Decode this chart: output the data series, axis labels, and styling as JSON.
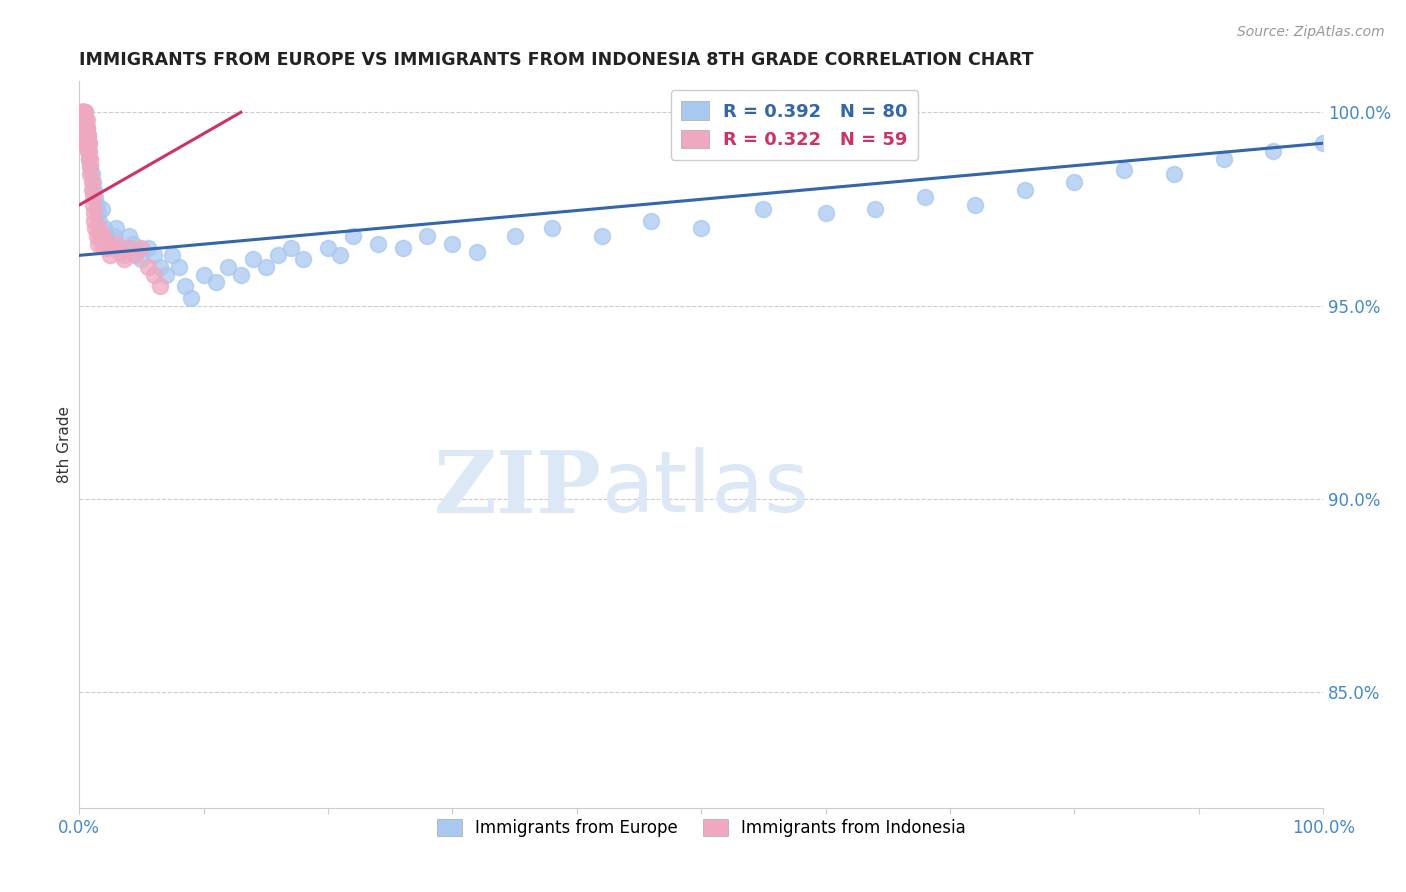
{
  "title": "IMMIGRANTS FROM EUROPE VS IMMIGRANTS FROM INDONESIA 8TH GRADE CORRELATION CHART",
  "source": "Source: ZipAtlas.com",
  "ylabel": "8th Grade",
  "xlim": [
    0.0,
    1.0
  ],
  "ylim": [
    0.82,
    1.008
  ],
  "yticks": [
    0.85,
    0.9,
    0.95,
    1.0
  ],
  "ytick_labels": [
    "85.0%",
    "90.0%",
    "95.0%",
    "100.0%"
  ],
  "xticks": [
    0.0,
    0.1,
    0.2,
    0.3,
    0.4,
    0.5,
    0.6,
    0.7,
    0.8,
    0.9,
    1.0
  ],
  "xtick_labels": [
    "0.0%",
    "",
    "",
    "",
    "",
    "",
    "",
    "",
    "",
    "",
    "100.0%"
  ],
  "legend1_label": "Immigrants from Europe",
  "legend2_label": "Immigrants from Indonesia",
  "R_europe": 0.392,
  "N_europe": 80,
  "R_indonesia": 0.322,
  "N_indonesia": 59,
  "europe_color": "#a8c8f0",
  "indonesia_color": "#f0a8c0",
  "europe_line_color": "#3366aa",
  "indonesia_line_color": "#cc3366",
  "watermark_zip": "ZIP",
  "watermark_atlas": "atlas",
  "watermark_color": "#dce8f5",
  "background_color": "#ffffff",
  "grid_color": "#cccccc",
  "axis_label_color": "#4488cc",
  "title_color": "#222222",
  "europe_x": [
    0.001,
    0.002,
    0.002,
    0.003,
    0.003,
    0.003,
    0.004,
    0.004,
    0.004,
    0.005,
    0.005,
    0.005,
    0.006,
    0.006,
    0.007,
    0.007,
    0.008,
    0.008,
    0.009,
    0.01,
    0.011,
    0.012,
    0.013,
    0.014,
    0.015,
    0.016,
    0.018,
    0.02,
    0.022,
    0.025,
    0.028,
    0.03,
    0.033,
    0.036,
    0.04,
    0.043,
    0.046,
    0.05,
    0.055,
    0.06,
    0.065,
    0.07,
    0.075,
    0.08,
    0.085,
    0.09,
    0.1,
    0.11,
    0.12,
    0.13,
    0.14,
    0.15,
    0.16,
    0.17,
    0.18,
    0.2,
    0.21,
    0.22,
    0.24,
    0.26,
    0.28,
    0.3,
    0.32,
    0.35,
    0.38,
    0.42,
    0.46,
    0.5,
    0.55,
    0.6,
    0.64,
    0.68,
    0.72,
    0.76,
    0.8,
    0.84,
    0.88,
    0.92,
    0.96,
    1.0
  ],
  "europe_y": [
    0.998,
    1.0,
    0.995,
    1.0,
    0.998,
    0.996,
    1.0,
    0.998,
    0.996,
    1.0,
    0.998,
    0.994,
    0.996,
    0.992,
    0.994,
    0.99,
    0.992,
    0.988,
    0.986,
    0.984,
    0.982,
    0.98,
    0.978,
    0.976,
    0.974,
    0.972,
    0.975,
    0.97,
    0.968,
    0.966,
    0.968,
    0.97,
    0.965,
    0.963,
    0.968,
    0.966,
    0.964,
    0.962,
    0.965,
    0.963,
    0.96,
    0.958,
    0.963,
    0.96,
    0.955,
    0.952,
    0.958,
    0.956,
    0.96,
    0.958,
    0.962,
    0.96,
    0.963,
    0.965,
    0.962,
    0.965,
    0.963,
    0.968,
    0.966,
    0.965,
    0.968,
    0.966,
    0.964,
    0.968,
    0.97,
    0.968,
    0.972,
    0.97,
    0.975,
    0.974,
    0.975,
    0.978,
    0.976,
    0.98,
    0.982,
    0.985,
    0.984,
    0.988,
    0.99,
    0.992
  ],
  "indonesia_x": [
    0.001,
    0.001,
    0.001,
    0.002,
    0.002,
    0.002,
    0.002,
    0.003,
    0.003,
    0.003,
    0.003,
    0.003,
    0.004,
    0.004,
    0.004,
    0.004,
    0.005,
    0.005,
    0.005,
    0.005,
    0.005,
    0.006,
    0.006,
    0.006,
    0.006,
    0.007,
    0.007,
    0.007,
    0.008,
    0.008,
    0.008,
    0.009,
    0.009,
    0.009,
    0.01,
    0.01,
    0.011,
    0.011,
    0.012,
    0.012,
    0.013,
    0.014,
    0.015,
    0.016,
    0.017,
    0.018,
    0.02,
    0.022,
    0.025,
    0.028,
    0.03,
    0.033,
    0.036,
    0.04,
    0.045,
    0.05,
    0.055,
    0.06,
    0.065
  ],
  "indonesia_y": [
    1.0,
    1.0,
    0.998,
    1.0,
    1.0,
    0.998,
    0.996,
    1.0,
    1.0,
    0.998,
    0.996,
    0.994,
    1.0,
    0.998,
    0.996,
    0.994,
    1.0,
    0.998,
    0.996,
    0.994,
    0.992,
    0.998,
    0.996,
    0.994,
    0.992,
    0.994,
    0.992,
    0.99,
    0.992,
    0.99,
    0.988,
    0.988,
    0.986,
    0.984,
    0.982,
    0.98,
    0.978,
    0.976,
    0.974,
    0.972,
    0.97,
    0.968,
    0.966,
    0.97,
    0.968,
    0.966,
    0.968,
    0.965,
    0.963,
    0.965,
    0.966,
    0.964,
    0.962,
    0.965,
    0.963,
    0.965,
    0.96,
    0.958,
    0.955
  ],
  "europe_line_x": [
    0.0,
    1.0
  ],
  "europe_line_y_start": 0.963,
  "europe_line_y_end": 0.992,
  "indonesia_line_x": [
    0.0,
    0.13
  ],
  "indonesia_line_y_start": 0.976,
  "indonesia_line_y_end": 1.0
}
